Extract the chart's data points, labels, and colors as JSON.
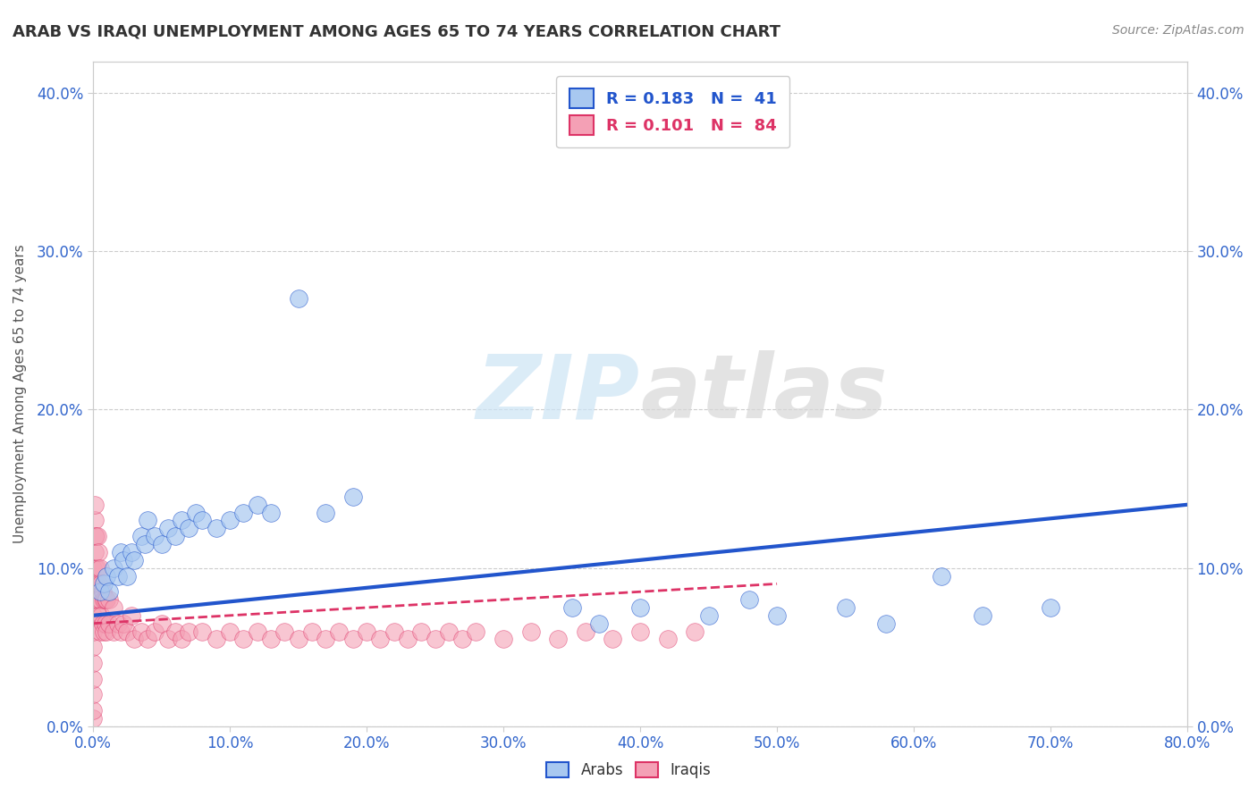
{
  "title": "ARAB VS IRAQI UNEMPLOYMENT AMONG AGES 65 TO 74 YEARS CORRELATION CHART",
  "source": "Source: ZipAtlas.com",
  "xlim": [
    0.0,
    0.8
  ],
  "ylim": [
    0.0,
    0.42
  ],
  "arab_R": 0.183,
  "arab_N": 41,
  "iraqi_R": 0.101,
  "iraqi_N": 84,
  "arab_color": "#a8c8f0",
  "iraqi_color": "#f4a0b5",
  "arab_line_color": "#2255cc",
  "iraqi_line_color": "#dd3366",
  "legend_label_arab": "Arabs",
  "legend_label_iraqi": "Iraqis",
  "watermark_zip": "ZIP",
  "watermark_atlas": "atlas",
  "background_color": "#ffffff",
  "grid_color": "#cccccc",
  "arab_scatter_x": [
    0.005,
    0.008,
    0.01,
    0.012,
    0.015,
    0.018,
    0.02,
    0.022,
    0.025,
    0.028,
    0.03,
    0.035,
    0.038,
    0.04,
    0.045,
    0.05,
    0.055,
    0.06,
    0.065,
    0.07,
    0.075,
    0.08,
    0.09,
    0.1,
    0.11,
    0.12,
    0.13,
    0.15,
    0.17,
    0.19,
    0.35,
    0.37,
    0.4,
    0.45,
    0.48,
    0.5,
    0.55,
    0.58,
    0.62,
    0.65,
    0.7
  ],
  "arab_scatter_y": [
    0.085,
    0.09,
    0.095,
    0.085,
    0.1,
    0.095,
    0.11,
    0.105,
    0.095,
    0.11,
    0.105,
    0.12,
    0.115,
    0.13,
    0.12,
    0.115,
    0.125,
    0.12,
    0.13,
    0.125,
    0.135,
    0.13,
    0.125,
    0.13,
    0.135,
    0.14,
    0.135,
    0.27,
    0.135,
    0.145,
    0.075,
    0.065,
    0.075,
    0.07,
    0.08,
    0.07,
    0.075,
    0.065,
    0.095,
    0.07,
    0.075
  ],
  "iraqi_scatter_x": [
    0.0,
    0.0,
    0.0,
    0.0,
    0.0,
    0.0,
    0.0,
    0.0,
    0.0,
    0.0,
    0.0,
    0.001,
    0.001,
    0.001,
    0.001,
    0.002,
    0.002,
    0.002,
    0.003,
    0.003,
    0.003,
    0.004,
    0.004,
    0.004,
    0.005,
    0.005,
    0.005,
    0.006,
    0.006,
    0.007,
    0.007,
    0.008,
    0.008,
    0.009,
    0.009,
    0.01,
    0.01,
    0.012,
    0.012,
    0.015,
    0.015,
    0.018,
    0.02,
    0.022,
    0.025,
    0.028,
    0.03,
    0.035,
    0.04,
    0.045,
    0.05,
    0.055,
    0.06,
    0.065,
    0.07,
    0.08,
    0.09,
    0.1,
    0.11,
    0.12,
    0.13,
    0.14,
    0.15,
    0.16,
    0.17,
    0.18,
    0.19,
    0.2,
    0.21,
    0.22,
    0.23,
    0.24,
    0.25,
    0.26,
    0.27,
    0.28,
    0.3,
    0.32,
    0.34,
    0.36,
    0.38,
    0.4,
    0.42,
    0.44
  ],
  "iraqi_scatter_y": [
    0.005,
    0.01,
    0.02,
    0.03,
    0.04,
    0.05,
    0.06,
    0.07,
    0.08,
    0.09,
    0.1,
    0.11,
    0.12,
    0.13,
    0.14,
    0.09,
    0.1,
    0.12,
    0.08,
    0.1,
    0.12,
    0.07,
    0.09,
    0.11,
    0.06,
    0.08,
    0.1,
    0.07,
    0.09,
    0.065,
    0.085,
    0.06,
    0.08,
    0.065,
    0.08,
    0.06,
    0.08,
    0.065,
    0.08,
    0.06,
    0.075,
    0.065,
    0.06,
    0.065,
    0.06,
    0.07,
    0.055,
    0.06,
    0.055,
    0.06,
    0.065,
    0.055,
    0.06,
    0.055,
    0.06,
    0.06,
    0.055,
    0.06,
    0.055,
    0.06,
    0.055,
    0.06,
    0.055,
    0.06,
    0.055,
    0.06,
    0.055,
    0.06,
    0.055,
    0.06,
    0.055,
    0.06,
    0.055,
    0.06,
    0.055,
    0.06,
    0.055,
    0.06,
    0.055,
    0.06,
    0.055,
    0.06,
    0.055,
    0.06
  ],
  "arab_trend_x": [
    0.0,
    0.8
  ],
  "arab_trend_y": [
    0.07,
    0.14
  ],
  "iraqi_trend_x": [
    0.0,
    0.5
  ],
  "iraqi_trend_y": [
    0.065,
    0.09
  ]
}
